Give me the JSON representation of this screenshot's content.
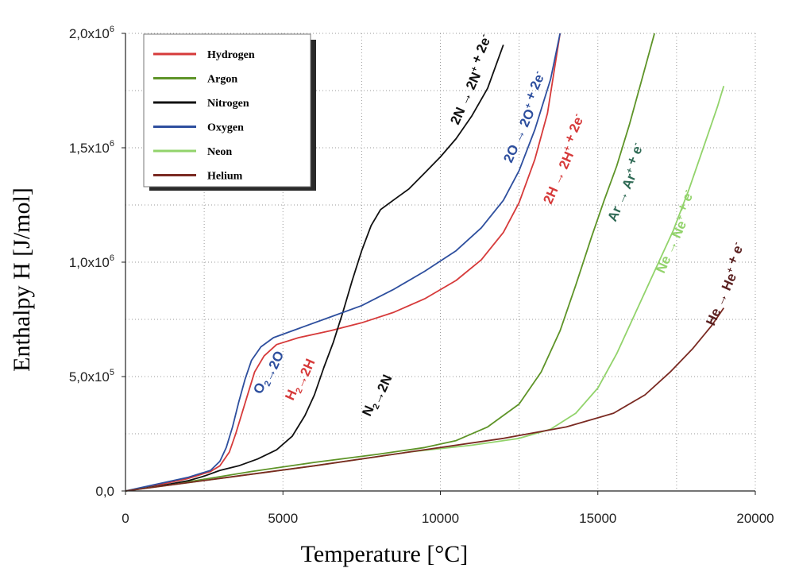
{
  "chart_data": {
    "type": "line",
    "title": "",
    "xlabel": "Temperature [°C]",
    "ylabel": "Enthalpy H [J/mol]",
    "xlim": [
      0,
      20000
    ],
    "ylim": [
      0,
      2000000
    ],
    "x_ticks": [
      0,
      5000,
      10000,
      15000,
      20000
    ],
    "x_tick_labels": [
      "0",
      "5000",
      "10000",
      "15000",
      "20000"
    ],
    "y_ticks": [
      0,
      500000,
      1000000,
      1500000,
      2000000
    ],
    "y_tick_labels": [
      {
        "base": "0,0",
        "exp": ""
      },
      {
        "base": "5,0x10",
        "exp": "5"
      },
      {
        "base": "1,0x10",
        "exp": "6"
      },
      {
        "base": "1,5x10",
        "exp": "6"
      },
      {
        "base": "2,0x10",
        "exp": "6"
      }
    ],
    "grid": true,
    "legend_position": "top-left",
    "series": [
      {
        "name": "Hydrogen",
        "color": "#d63a3a",
        "points": [
          [
            0,
            0
          ],
          [
            1000,
            25000
          ],
          [
            2000,
            55000
          ],
          [
            2700,
            85000
          ],
          [
            3000,
            110000
          ],
          [
            3300,
            170000
          ],
          [
            3500,
            250000
          ],
          [
            3700,
            340000
          ],
          [
            3900,
            430000
          ],
          [
            4100,
            520000
          ],
          [
            4400,
            590000
          ],
          [
            4800,
            640000
          ],
          [
            5500,
            670000
          ],
          [
            6500,
            700000
          ],
          [
            7500,
            735000
          ],
          [
            8500,
            780000
          ],
          [
            9500,
            840000
          ],
          [
            10500,
            920000
          ],
          [
            11300,
            1010000
          ],
          [
            12000,
            1130000
          ],
          [
            12500,
            1260000
          ],
          [
            13000,
            1450000
          ],
          [
            13400,
            1650000
          ],
          [
            13800,
            2000000
          ]
        ]
      },
      {
        "name": "Argon",
        "color": "#5e9428",
        "points": [
          [
            0,
            0
          ],
          [
            2000,
            40000
          ],
          [
            4000,
            85000
          ],
          [
            6000,
            125000
          ],
          [
            8000,
            160000
          ],
          [
            9500,
            190000
          ],
          [
            10500,
            220000
          ],
          [
            11500,
            280000
          ],
          [
            12500,
            380000
          ],
          [
            13200,
            520000
          ],
          [
            13800,
            700000
          ],
          [
            14300,
            900000
          ],
          [
            14800,
            1110000
          ],
          [
            15200,
            1270000
          ],
          [
            15600,
            1420000
          ],
          [
            16000,
            1600000
          ],
          [
            16400,
            1800000
          ],
          [
            16800,
            2000000
          ]
        ]
      },
      {
        "name": "Nitrogen",
        "color": "#111111",
        "points": [
          [
            0,
            0
          ],
          [
            1000,
            20000
          ],
          [
            2000,
            45000
          ],
          [
            2500,
            65000
          ],
          [
            3000,
            90000
          ],
          [
            3600,
            110000
          ],
          [
            4200,
            140000
          ],
          [
            4800,
            180000
          ],
          [
            5300,
            240000
          ],
          [
            5700,
            330000
          ],
          [
            6000,
            420000
          ],
          [
            6300,
            540000
          ],
          [
            6600,
            650000
          ],
          [
            6900,
            780000
          ],
          [
            7200,
            920000
          ],
          [
            7500,
            1050000
          ],
          [
            7800,
            1160000
          ],
          [
            8100,
            1230000
          ],
          [
            8500,
            1270000
          ],
          [
            9000,
            1320000
          ],
          [
            9500,
            1390000
          ],
          [
            10000,
            1460000
          ],
          [
            10500,
            1540000
          ],
          [
            11000,
            1640000
          ],
          [
            11500,
            1760000
          ],
          [
            12000,
            1950000
          ]
        ]
      },
      {
        "name": "Oxygen",
        "color": "#2e4f9e",
        "points": [
          [
            0,
            0
          ],
          [
            1000,
            30000
          ],
          [
            2000,
            60000
          ],
          [
            2700,
            90000
          ],
          [
            3000,
            130000
          ],
          [
            3200,
            190000
          ],
          [
            3400,
            280000
          ],
          [
            3600,
            390000
          ],
          [
            3800,
            490000
          ],
          [
            4000,
            570000
          ],
          [
            4300,
            630000
          ],
          [
            4700,
            670000
          ],
          [
            5500,
            710000
          ],
          [
            6500,
            760000
          ],
          [
            7500,
            810000
          ],
          [
            8500,
            880000
          ],
          [
            9500,
            960000
          ],
          [
            10500,
            1050000
          ],
          [
            11300,
            1150000
          ],
          [
            12000,
            1270000
          ],
          [
            12500,
            1400000
          ],
          [
            13000,
            1580000
          ],
          [
            13500,
            1800000
          ],
          [
            13800,
            2000000
          ]
        ]
      },
      {
        "name": "Neon",
        "color": "#92d36b",
        "points": [
          [
            0,
            0
          ],
          [
            3000,
            55000
          ],
          [
            6000,
            110000
          ],
          [
            9000,
            170000
          ],
          [
            11000,
            200000
          ],
          [
            12500,
            230000
          ],
          [
            13500,
            270000
          ],
          [
            14300,
            340000
          ],
          [
            15000,
            450000
          ],
          [
            15600,
            600000
          ],
          [
            16200,
            780000
          ],
          [
            16800,
            960000
          ],
          [
            17400,
            1140000
          ],
          [
            17900,
            1320000
          ],
          [
            18400,
            1520000
          ],
          [
            18800,
            1680000
          ],
          [
            19000,
            1770000
          ]
        ]
      },
      {
        "name": "Helium",
        "color": "#7a2a22",
        "points": [
          [
            0,
            0
          ],
          [
            3000,
            55000
          ],
          [
            6000,
            110000
          ],
          [
            9000,
            170000
          ],
          [
            12000,
            230000
          ],
          [
            14000,
            280000
          ],
          [
            15500,
            340000
          ],
          [
            16500,
            420000
          ],
          [
            17300,
            520000
          ],
          [
            18000,
            620000
          ],
          [
            18600,
            720000
          ],
          [
            19000,
            800000
          ]
        ]
      }
    ],
    "annotations": [
      {
        "parts": [
          {
            "t": "O"
          },
          {
            "t": "2",
            "s": "sub"
          },
          {
            "t": "→2O"
          }
        ],
        "color": "#2e4f9e"
      },
      {
        "parts": [
          {
            "t": "H"
          },
          {
            "t": "2",
            "s": "sub"
          },
          {
            "t": "→2H"
          }
        ],
        "color": "#d63a3a"
      },
      {
        "parts": [
          {
            "t": "N"
          },
          {
            "t": "2",
            "s": "sub"
          },
          {
            "t": "→2N"
          }
        ],
        "color": "#111111"
      },
      {
        "parts": [
          {
            "t": "2N → 2N"
          },
          {
            "t": "+",
            "s": "sup"
          },
          {
            "t": " + 2e"
          },
          {
            "t": "-",
            "s": "sup"
          }
        ],
        "color": "#111111"
      },
      {
        "parts": [
          {
            "t": "2O → 2O"
          },
          {
            "t": "+",
            "s": "sup"
          },
          {
            "t": " + 2e"
          },
          {
            "t": "-",
            "s": "sup"
          }
        ],
        "color": "#2e4f9e"
      },
      {
        "parts": [
          {
            "t": "2H → 2H"
          },
          {
            "t": "+",
            "s": "sup"
          },
          {
            "t": " + 2e"
          },
          {
            "t": "-",
            "s": "sup"
          }
        ],
        "color": "#d63a3a"
      },
      {
        "parts": [
          {
            "t": "Ar → Ar"
          },
          {
            "t": "+",
            "s": "sup"
          },
          {
            "t": " + e"
          },
          {
            "t": "-",
            "s": "sup"
          }
        ],
        "color": "#2f6a55"
      },
      {
        "parts": [
          {
            "t": "Ne → Ne"
          },
          {
            "t": "+",
            "s": "sup"
          },
          {
            "t": " + e"
          },
          {
            "t": "-",
            "s": "sup"
          }
        ],
        "color": "#92d36b"
      },
      {
        "parts": [
          {
            "t": "He → He"
          },
          {
            "t": "+",
            "s": "sup"
          },
          {
            "t": " + e"
          },
          {
            "t": "-",
            "s": "sup"
          }
        ],
        "color": "#5a2020"
      }
    ]
  }
}
